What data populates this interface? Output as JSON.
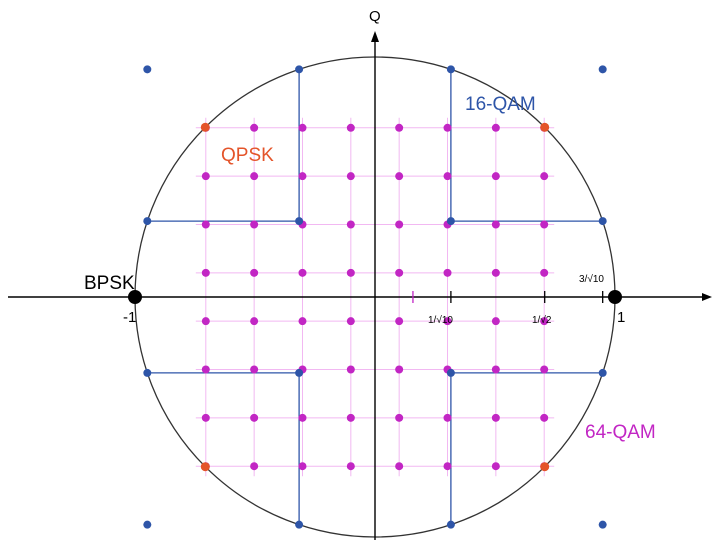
{
  "diagram": {
    "axis_labels": {
      "vertical": "Q"
    },
    "series": [
      {
        "id": "bpsk",
        "name": "BPSK",
        "color": "#000000"
      },
      {
        "id": "qpsk",
        "name": "QPSK",
        "color": "#e4542a"
      },
      {
        "id": "qam16",
        "name": "16-QAM",
        "color": "#2e55a8"
      },
      {
        "id": "qam64",
        "name": "64-QAM",
        "color": "#c226c4"
      }
    ],
    "tick_labels": {
      "neg_one": "-1",
      "one": "1",
      "inv_sqrt10": "1/√10",
      "inv_sqrt2": "1/√2",
      "three_inv_sqrt10": "3/√10"
    },
    "colors": {
      "axes": "#000000",
      "circle": "#333333",
      "grid_64qam": "#f2b8f2",
      "guide_16qam": "#2e55a8"
    },
    "unit_circle_radius": 1,
    "qam64_levels": [
      -7,
      -5,
      -3,
      -1,
      1,
      3,
      5,
      7
    ],
    "qam16_levels": [
      -3,
      -1,
      1,
      3
    ]
  }
}
